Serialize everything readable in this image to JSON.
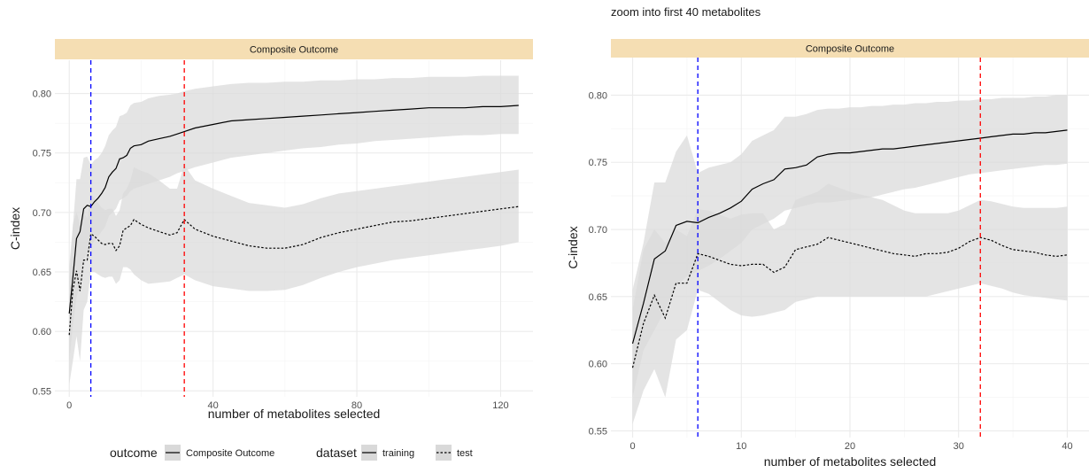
{
  "colors": {
    "strip": "#f5deb3",
    "ribbon": "#d9d9d9",
    "line": "#000000",
    "grid_major": "#ebebeb",
    "grid_minor": "#f5f5f5",
    "vline_blue": "#0000ff",
    "vline_red": "#ff0000"
  },
  "legend": {
    "outcome_title": "outcome",
    "outcome_items": [
      {
        "label": "Composite Outcome",
        "linetype": "solid"
      }
    ],
    "dataset_title": "dataset",
    "dataset_items": [
      {
        "label": "training",
        "linetype": "solid"
      },
      {
        "label": "test",
        "linetype": "dashed"
      }
    ]
  },
  "chart_data": [
    {
      "type": "line",
      "title": "",
      "facet_label": "Composite Outcome",
      "xlabel": "number of metabolites selected",
      "ylabel": "C-index",
      "xlim": [
        -4,
        129
      ],
      "ylim": [
        0.545,
        0.828
      ],
      "x_ticks": [
        0,
        40,
        80,
        120
      ],
      "y_ticks": [
        0.55,
        0.6,
        0.65,
        0.7,
        0.75,
        0.8
      ],
      "y_tick_labels": [
        "0.55",
        "0.60",
        "0.65",
        "0.70",
        "0.75",
        "0.80"
      ],
      "vlines": [
        {
          "x": 6,
          "color": "#0000ff"
        },
        {
          "x": 32,
          "color": "#ff0000"
        }
      ],
      "series": [
        {
          "name": "training",
          "linetype": "solid",
          "x": [
            0,
            1,
            2,
            3,
            4,
            5,
            6,
            7,
            8,
            9,
            10,
            11,
            12,
            13,
            14,
            15,
            16,
            17,
            18,
            20,
            22,
            25,
            28,
            30,
            32,
            35,
            40,
            45,
            50,
            55,
            60,
            65,
            70,
            75,
            80,
            85,
            90,
            95,
            100,
            105,
            110,
            115,
            120,
            125
          ],
          "y": [
            0.615,
            0.645,
            0.678,
            0.684,
            0.703,
            0.706,
            0.705,
            0.709,
            0.712,
            0.716,
            0.721,
            0.73,
            0.734,
            0.737,
            0.745,
            0.746,
            0.748,
            0.754,
            0.756,
            0.757,
            0.76,
            0.762,
            0.764,
            0.766,
            0.768,
            0.771,
            0.774,
            0.777,
            0.778,
            0.779,
            0.78,
            0.781,
            0.782,
            0.783,
            0.784,
            0.785,
            0.786,
            0.787,
            0.788,
            0.788,
            0.788,
            0.789,
            0.789,
            0.79
          ],
          "lower": [
            0.575,
            0.605,
            0.628,
            0.64,
            0.66,
            0.667,
            0.672,
            0.676,
            0.68,
            0.684,
            0.688,
            0.697,
            0.7,
            0.703,
            0.71,
            0.712,
            0.714,
            0.718,
            0.72,
            0.722,
            0.724,
            0.727,
            0.73,
            0.733,
            0.735,
            0.738,
            0.742,
            0.746,
            0.748,
            0.75,
            0.752,
            0.754,
            0.755,
            0.757,
            0.758,
            0.76,
            0.761,
            0.762,
            0.763,
            0.764,
            0.765,
            0.765,
            0.766,
            0.766
          ],
          "upper": [
            0.655,
            0.688,
            0.728,
            0.728,
            0.746,
            0.747,
            0.74,
            0.744,
            0.746,
            0.75,
            0.756,
            0.765,
            0.769,
            0.772,
            0.781,
            0.782,
            0.784,
            0.79,
            0.792,
            0.793,
            0.796,
            0.798,
            0.799,
            0.8,
            0.802,
            0.804,
            0.806,
            0.808,
            0.809,
            0.809,
            0.81,
            0.81,
            0.811,
            0.811,
            0.812,
            0.812,
            0.813,
            0.813,
            0.814,
            0.814,
            0.814,
            0.815,
            0.815,
            0.815
          ]
        },
        {
          "name": "test",
          "linetype": "dashed",
          "x": [
            0,
            1,
            2,
            3,
            4,
            5,
            6,
            7,
            8,
            9,
            10,
            11,
            12,
            13,
            14,
            15,
            16,
            17,
            18,
            20,
            22,
            25,
            28,
            30,
            32,
            35,
            40,
            45,
            50,
            55,
            60,
            65,
            70,
            75,
            80,
            85,
            90,
            95,
            100,
            105,
            110,
            115,
            120,
            125
          ],
          "y": [
            0.597,
            0.635,
            0.651,
            0.634,
            0.66,
            0.66,
            0.682,
            0.68,
            0.677,
            0.674,
            0.673,
            0.674,
            0.674,
            0.668,
            0.672,
            0.685,
            0.687,
            0.689,
            0.694,
            0.69,
            0.687,
            0.684,
            0.681,
            0.683,
            0.694,
            0.686,
            0.68,
            0.676,
            0.672,
            0.67,
            0.67,
            0.673,
            0.679,
            0.683,
            0.686,
            0.689,
            0.692,
            0.693,
            0.695,
            0.697,
            0.699,
            0.701,
            0.703,
            0.705
          ],
          "lower": [
            0.555,
            0.575,
            0.596,
            0.575,
            0.618,
            0.625,
            0.65,
            0.65,
            0.648,
            0.646,
            0.645,
            0.646,
            0.646,
            0.64,
            0.643,
            0.654,
            0.654,
            0.652,
            0.648,
            0.643,
            0.64,
            0.641,
            0.642,
            0.645,
            0.648,
            0.643,
            0.638,
            0.636,
            0.634,
            0.634,
            0.635,
            0.639,
            0.645,
            0.65,
            0.654,
            0.657,
            0.66,
            0.662,
            0.664,
            0.666,
            0.668,
            0.67,
            0.672,
            0.675
          ],
          "upper": [
            0.64,
            0.69,
            0.7,
            0.69,
            0.7,
            0.695,
            0.715,
            0.712,
            0.708,
            0.704,
            0.702,
            0.703,
            0.703,
            0.697,
            0.702,
            0.716,
            0.72,
            0.727,
            0.738,
            0.735,
            0.733,
            0.727,
            0.72,
            0.72,
            0.74,
            0.727,
            0.72,
            0.714,
            0.708,
            0.706,
            0.704,
            0.707,
            0.712,
            0.716,
            0.718,
            0.72,
            0.722,
            0.724,
            0.726,
            0.728,
            0.73,
            0.732,
            0.734,
            0.736
          ]
        }
      ]
    },
    {
      "type": "line",
      "title": "zoom into first 40 metabolites",
      "facet_label": "Composite Outcome",
      "xlabel": "number of metabolites selected",
      "ylabel": "C-index",
      "xlim": [
        -2,
        42
      ],
      "ylim": [
        0.545,
        0.828
      ],
      "x_ticks": [
        0,
        10,
        20,
        30,
        40
      ],
      "y_ticks": [
        0.55,
        0.6,
        0.65,
        0.7,
        0.75,
        0.8
      ],
      "y_tick_labels": [
        "0.55",
        "0.60",
        "0.65",
        "0.70",
        "0.75",
        "0.80"
      ],
      "vlines": [
        {
          "x": 6,
          "color": "#0000ff"
        },
        {
          "x": 32,
          "color": "#ff0000"
        }
      ],
      "series": [
        {
          "name": "training",
          "linetype": "solid",
          "x": [
            0,
            1,
            2,
            3,
            4,
            5,
            6,
            7,
            8,
            9,
            10,
            11,
            12,
            13,
            14,
            15,
            16,
            17,
            18,
            19,
            20,
            21,
            22,
            23,
            24,
            25,
            26,
            27,
            28,
            29,
            30,
            31,
            32,
            33,
            34,
            35,
            36,
            37,
            38,
            39,
            40
          ],
          "y": [
            0.615,
            0.645,
            0.678,
            0.684,
            0.703,
            0.706,
            0.705,
            0.709,
            0.712,
            0.716,
            0.721,
            0.73,
            0.734,
            0.737,
            0.745,
            0.746,
            0.748,
            0.754,
            0.756,
            0.757,
            0.757,
            0.758,
            0.759,
            0.76,
            0.76,
            0.761,
            0.762,
            0.763,
            0.764,
            0.765,
            0.766,
            0.767,
            0.768,
            0.769,
            0.77,
            0.771,
            0.771,
            0.772,
            0.772,
            0.773,
            0.774
          ],
          "lower": [
            0.575,
            0.61,
            0.625,
            0.64,
            0.658,
            0.665,
            0.669,
            0.673,
            0.678,
            0.684,
            0.69,
            0.7,
            0.704,
            0.708,
            0.714,
            0.716,
            0.718,
            0.72,
            0.72,
            0.721,
            0.722,
            0.723,
            0.724,
            0.726,
            0.728,
            0.73,
            0.731,
            0.733,
            0.735,
            0.737,
            0.739,
            0.741,
            0.742,
            0.743,
            0.744,
            0.745,
            0.746,
            0.747,
            0.748,
            0.748,
            0.749
          ],
          "upper": [
            0.655,
            0.69,
            0.735,
            0.735,
            0.758,
            0.77,
            0.742,
            0.746,
            0.748,
            0.75,
            0.756,
            0.766,
            0.77,
            0.774,
            0.784,
            0.784,
            0.786,
            0.789,
            0.79,
            0.79,
            0.791,
            0.791,
            0.792,
            0.792,
            0.793,
            0.793,
            0.794,
            0.794,
            0.795,
            0.795,
            0.796,
            0.796,
            0.797,
            0.797,
            0.798,
            0.798,
            0.798,
            0.799,
            0.799,
            0.8,
            0.8
          ]
        },
        {
          "name": "test",
          "linetype": "dashed",
          "x": [
            0,
            1,
            2,
            3,
            4,
            5,
            6,
            7,
            8,
            9,
            10,
            11,
            12,
            13,
            14,
            15,
            16,
            17,
            18,
            19,
            20,
            21,
            22,
            23,
            24,
            25,
            26,
            27,
            28,
            29,
            30,
            31,
            32,
            33,
            34,
            35,
            36,
            37,
            38,
            39,
            40
          ],
          "y": [
            0.597,
            0.63,
            0.651,
            0.634,
            0.66,
            0.66,
            0.682,
            0.68,
            0.677,
            0.674,
            0.673,
            0.674,
            0.674,
            0.668,
            0.672,
            0.685,
            0.687,
            0.689,
            0.694,
            0.692,
            0.69,
            0.688,
            0.686,
            0.684,
            0.682,
            0.681,
            0.68,
            0.682,
            0.682,
            0.683,
            0.686,
            0.691,
            0.694,
            0.692,
            0.688,
            0.685,
            0.684,
            0.683,
            0.681,
            0.68,
            0.681
          ],
          "lower": [
            0.555,
            0.58,
            0.596,
            0.575,
            0.618,
            0.625,
            0.655,
            0.652,
            0.646,
            0.64,
            0.636,
            0.635,
            0.636,
            0.638,
            0.64,
            0.646,
            0.648,
            0.65,
            0.65,
            0.65,
            0.65,
            0.65,
            0.65,
            0.65,
            0.65,
            0.65,
            0.65,
            0.65,
            0.652,
            0.654,
            0.656,
            0.658,
            0.66,
            0.658,
            0.656,
            0.653,
            0.651,
            0.65,
            0.649,
            0.648,
            0.647
          ],
          "upper": [
            0.64,
            0.685,
            0.7,
            0.69,
            0.7,
            0.695,
            0.715,
            0.714,
            0.711,
            0.708,
            0.711,
            0.712,
            0.712,
            0.7,
            0.704,
            0.722,
            0.725,
            0.728,
            0.734,
            0.731,
            0.728,
            0.726,
            0.724,
            0.722,
            0.718,
            0.714,
            0.712,
            0.712,
            0.712,
            0.712,
            0.714,
            0.718,
            0.722,
            0.721,
            0.719,
            0.717,
            0.716,
            0.716,
            0.716,
            0.716,
            0.717
          ]
        }
      ]
    }
  ]
}
